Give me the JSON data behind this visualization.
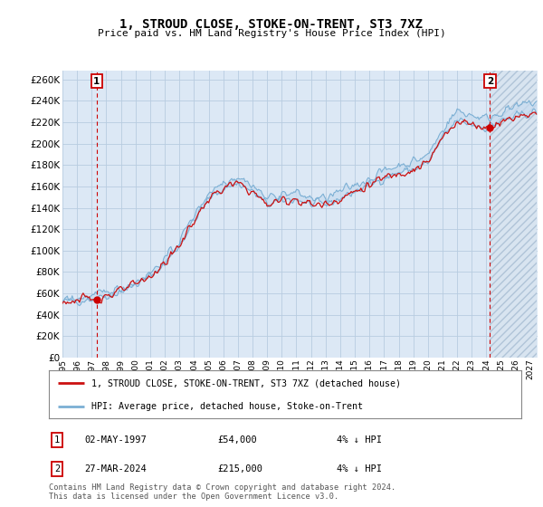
{
  "title": "1, STROUD CLOSE, STOKE-ON-TRENT, ST3 7XZ",
  "subtitle": "Price paid vs. HM Land Registry's House Price Index (HPI)",
  "yticks": [
    0,
    20000,
    40000,
    60000,
    80000,
    100000,
    120000,
    140000,
    160000,
    180000,
    200000,
    220000,
    240000,
    260000
  ],
  "ylim": [
    0,
    268000
  ],
  "xlim": [
    1995.0,
    2027.5
  ],
  "legend_line1": "1, STROUD CLOSE, STOKE-ON-TRENT, ST3 7XZ (detached house)",
  "legend_line2": "HPI: Average price, detached house, Stoke-on-Trent",
  "footnote": "Contains HM Land Registry data © Crown copyright and database right 2024.\nThis data is licensed under the Open Government Licence v3.0.",
  "transaction1_date": "02-MAY-1997",
  "transaction1_price": "£54,000",
  "transaction1_hpi": "4% ↓ HPI",
  "transaction2_date": "27-MAR-2024",
  "transaction2_price": "£215,000",
  "transaction2_hpi": "4% ↓ HPI",
  "sale_years": [
    1997.34,
    2024.24
  ],
  "sale_prices": [
    54000,
    215000
  ],
  "hpi_color": "#7bafd4",
  "hpi_fill_color": "#c8dcf0",
  "price_color": "#cc1111",
  "background_color": "#dce8f5",
  "grid_color": "#b8cce0",
  "annotation_box_color": "#cc0000",
  "hatch_fill_color": "#d8e4f0",
  "xticks": [
    1995,
    1996,
    1997,
    1998,
    1999,
    2000,
    2001,
    2002,
    2003,
    2004,
    2005,
    2006,
    2007,
    2008,
    2009,
    2010,
    2011,
    2012,
    2013,
    2014,
    2015,
    2016,
    2017,
    2018,
    2019,
    2020,
    2021,
    2022,
    2023,
    2024,
    2025,
    2026,
    2027
  ]
}
